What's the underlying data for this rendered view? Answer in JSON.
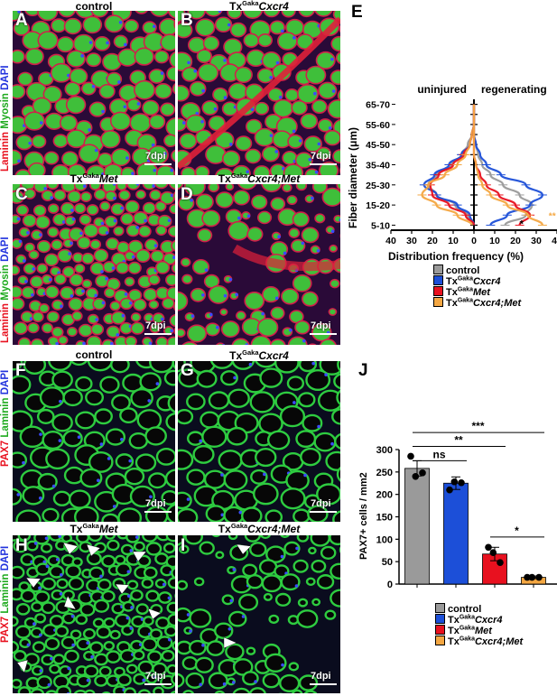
{
  "colors": {
    "control": "#9a9a9a",
    "cxcr4": "#1c4fd8",
    "met": "#e8111f",
    "double": "#f4a742",
    "laminin": "#e8111f",
    "myosin": "#1faa1f",
    "dapi": "#2233dd"
  },
  "stain_top": {
    "laminin": "Laminin",
    "myosin": "Myosin",
    "dapi": "DAPI"
  },
  "stain_bottom": {
    "pax7": "PAX7",
    "laminin": "Laminin",
    "dapi": "DAPI"
  },
  "panels": {
    "A": {
      "letter": "A",
      "title": "control",
      "sup": "",
      "gene": ""
    },
    "B": {
      "letter": "B",
      "title": "Tx",
      "sup": "Gaka",
      "gene": "Cxcr4"
    },
    "C": {
      "letter": "C",
      "title": "Tx",
      "sup": "Gaka",
      "gene": "Met"
    },
    "D": {
      "letter": "D",
      "title": "Tx",
      "sup": "Gaka",
      "gene": "Cxcr4;Met"
    },
    "E": {
      "letter": "E"
    },
    "F": {
      "letter": "F",
      "title": "control",
      "sup": "",
      "gene": ""
    },
    "G": {
      "letter": "G",
      "title": "Tx",
      "sup": "Gaka",
      "gene": "Cxcr4"
    },
    "H": {
      "letter": "H",
      "title": "Tx",
      "sup": "Gaka",
      "gene": "Met"
    },
    "I": {
      "letter": "I",
      "title": "Tx",
      "sup": "Gaka",
      "gene": "Cxcr4;Met"
    },
    "J": {
      "letter": "J"
    }
  },
  "dpi_label": "7dpi",
  "legend": [
    {
      "key": "control",
      "prefix": "control",
      "sup": "",
      "gene": ""
    },
    {
      "key": "cxcr4",
      "prefix": "Tx",
      "sup": "Gaka",
      "gene": "Cxcr4"
    },
    {
      "key": "met",
      "prefix": "Tx",
      "sup": "Gaka",
      "gene": "Met"
    },
    {
      "key": "double",
      "prefix": "Tx",
      "sup": "Gaka",
      "gene": "Cxcr4;Met"
    }
  ],
  "chart_data": [
    {
      "type": "line",
      "panel": "E",
      "title": "",
      "ylabel": "Fiber diameter (μm)",
      "xlabel": "Distribution frequency (%)",
      "sections": [
        "uninjured",
        "regenerating"
      ],
      "categories": [
        "5-10",
        "10-15",
        "15-20",
        "20-25",
        "25-30",
        "30-35",
        "35-40",
        "40-45",
        "45-50",
        "50-55",
        "55-60",
        "60-65",
        "65-70"
      ],
      "category_ticks": [
        "5-10",
        "15-20",
        "25-30",
        "35-40",
        "45-50",
        "55-60",
        "65-70"
      ],
      "xticks_left": [
        40,
        30,
        20,
        10,
        0
      ],
      "xticks_right": [
        0,
        10,
        20,
        30,
        40
      ],
      "uninjured": [
        {
          "name": "control",
          "values": [
            0,
            3,
            9,
            18,
            22,
            18,
            11,
            6,
            3,
            1,
            0,
            0,
            0
          ]
        },
        {
          "name": "cxcr4",
          "values": [
            0,
            2,
            8,
            18,
            24,
            19,
            12,
            6,
            2,
            1,
            0,
            0,
            0
          ]
        },
        {
          "name": "met",
          "values": [
            0,
            4,
            12,
            20,
            21,
            17,
            10,
            5,
            2,
            1,
            0,
            0,
            0
          ]
        },
        {
          "name": "double",
          "values": [
            1,
            8,
            18,
            25,
            22,
            14,
            8,
            4,
            2,
            1,
            0,
            0,
            0
          ]
        }
      ],
      "regenerating": [
        {
          "name": "control",
          "values": [
            15,
            25,
            28,
            22,
            14,
            8,
            4,
            2,
            1,
            0,
            0,
            0,
            0
          ]
        },
        {
          "name": "cxcr4",
          "values": [
            8,
            16,
            27,
            33,
            25,
            13,
            6,
            3,
            1,
            0,
            0,
            0,
            0
          ]
        },
        {
          "name": "met",
          "values": [
            22,
            27,
            20,
            12,
            6,
            3,
            1,
            0,
            0,
            0,
            0,
            0,
            0
          ]
        },
        {
          "name": "double",
          "values": [
            33,
            26,
            16,
            8,
            4,
            2,
            1,
            0,
            0,
            0,
            0,
            0,
            0
          ]
        }
      ],
      "annotations": [
        "*",
        "**"
      ]
    },
    {
      "type": "bar",
      "panel": "J",
      "title": "",
      "ylabel": "PAX7+ cells / mm2",
      "categories": [
        "control",
        "cxcr4",
        "met",
        "double"
      ],
      "values": [
        258,
        225,
        67,
        15
      ],
      "errors": [
        17,
        14,
        15,
        3
      ],
      "points": [
        [
          285,
          248,
          240
        ],
        [
          210,
          226,
          228
        ],
        [
          82,
          48,
          70
        ],
        [
          15,
          15,
          15
        ]
      ],
      "ylim": [
        0,
        300
      ],
      "yticks": [
        0,
        50,
        100,
        150,
        200,
        250,
        300
      ],
      "significance": [
        {
          "from": 0,
          "to": 1,
          "label": "ns"
        },
        {
          "from": 0,
          "to": 2,
          "label": "**"
        },
        {
          "from": 0,
          "to": 3,
          "label": "***"
        },
        {
          "from": 2,
          "to": 3,
          "label": "*"
        }
      ]
    }
  ]
}
